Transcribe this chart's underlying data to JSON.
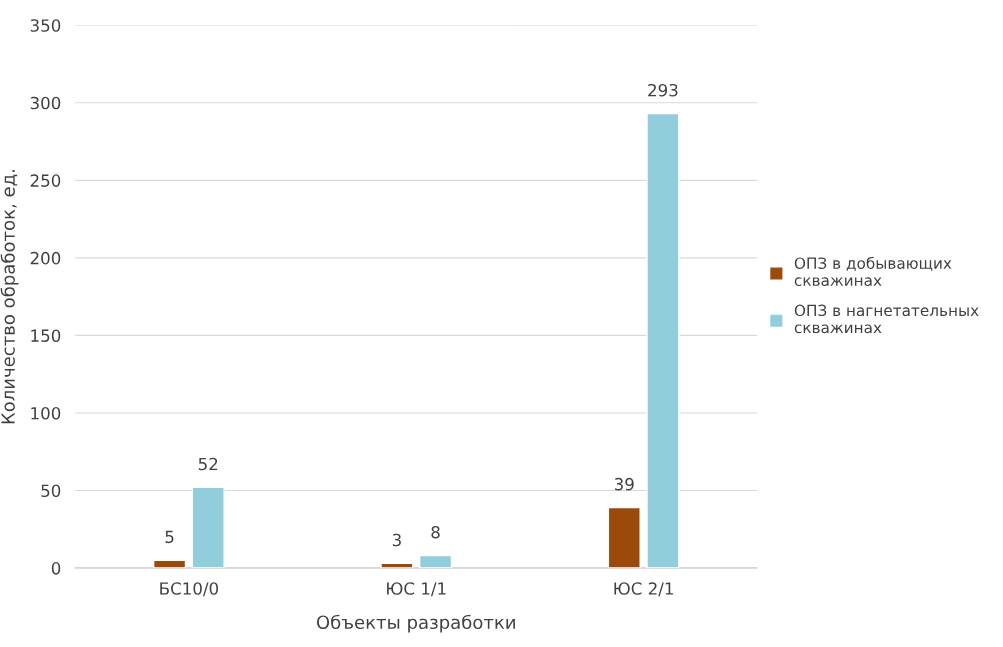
{
  "chart_data": {
    "type": "bar",
    "xlabel": "Объекты разработки",
    "ylabel": "Количество обработок, ед.",
    "categories": [
      "БС10/0",
      "ЮС 1/1",
      "ЮС 2/1"
    ],
    "series": [
      {
        "name": "ОПЗ в добывающих скважинах",
        "color": "#9c4a0b",
        "values": [
          5,
          3,
          39
        ]
      },
      {
        "name": "ОПЗ в нагнетательных скважинах",
        "color": "#92cddc",
        "values": [
          52,
          8,
          293
        ]
      }
    ],
    "ylim": [
      0,
      350
    ],
    "yticks": [
      0,
      50,
      100,
      150,
      200,
      250,
      300,
      350
    ],
    "grid": "y",
    "legend": "right",
    "data_labels": true
  }
}
